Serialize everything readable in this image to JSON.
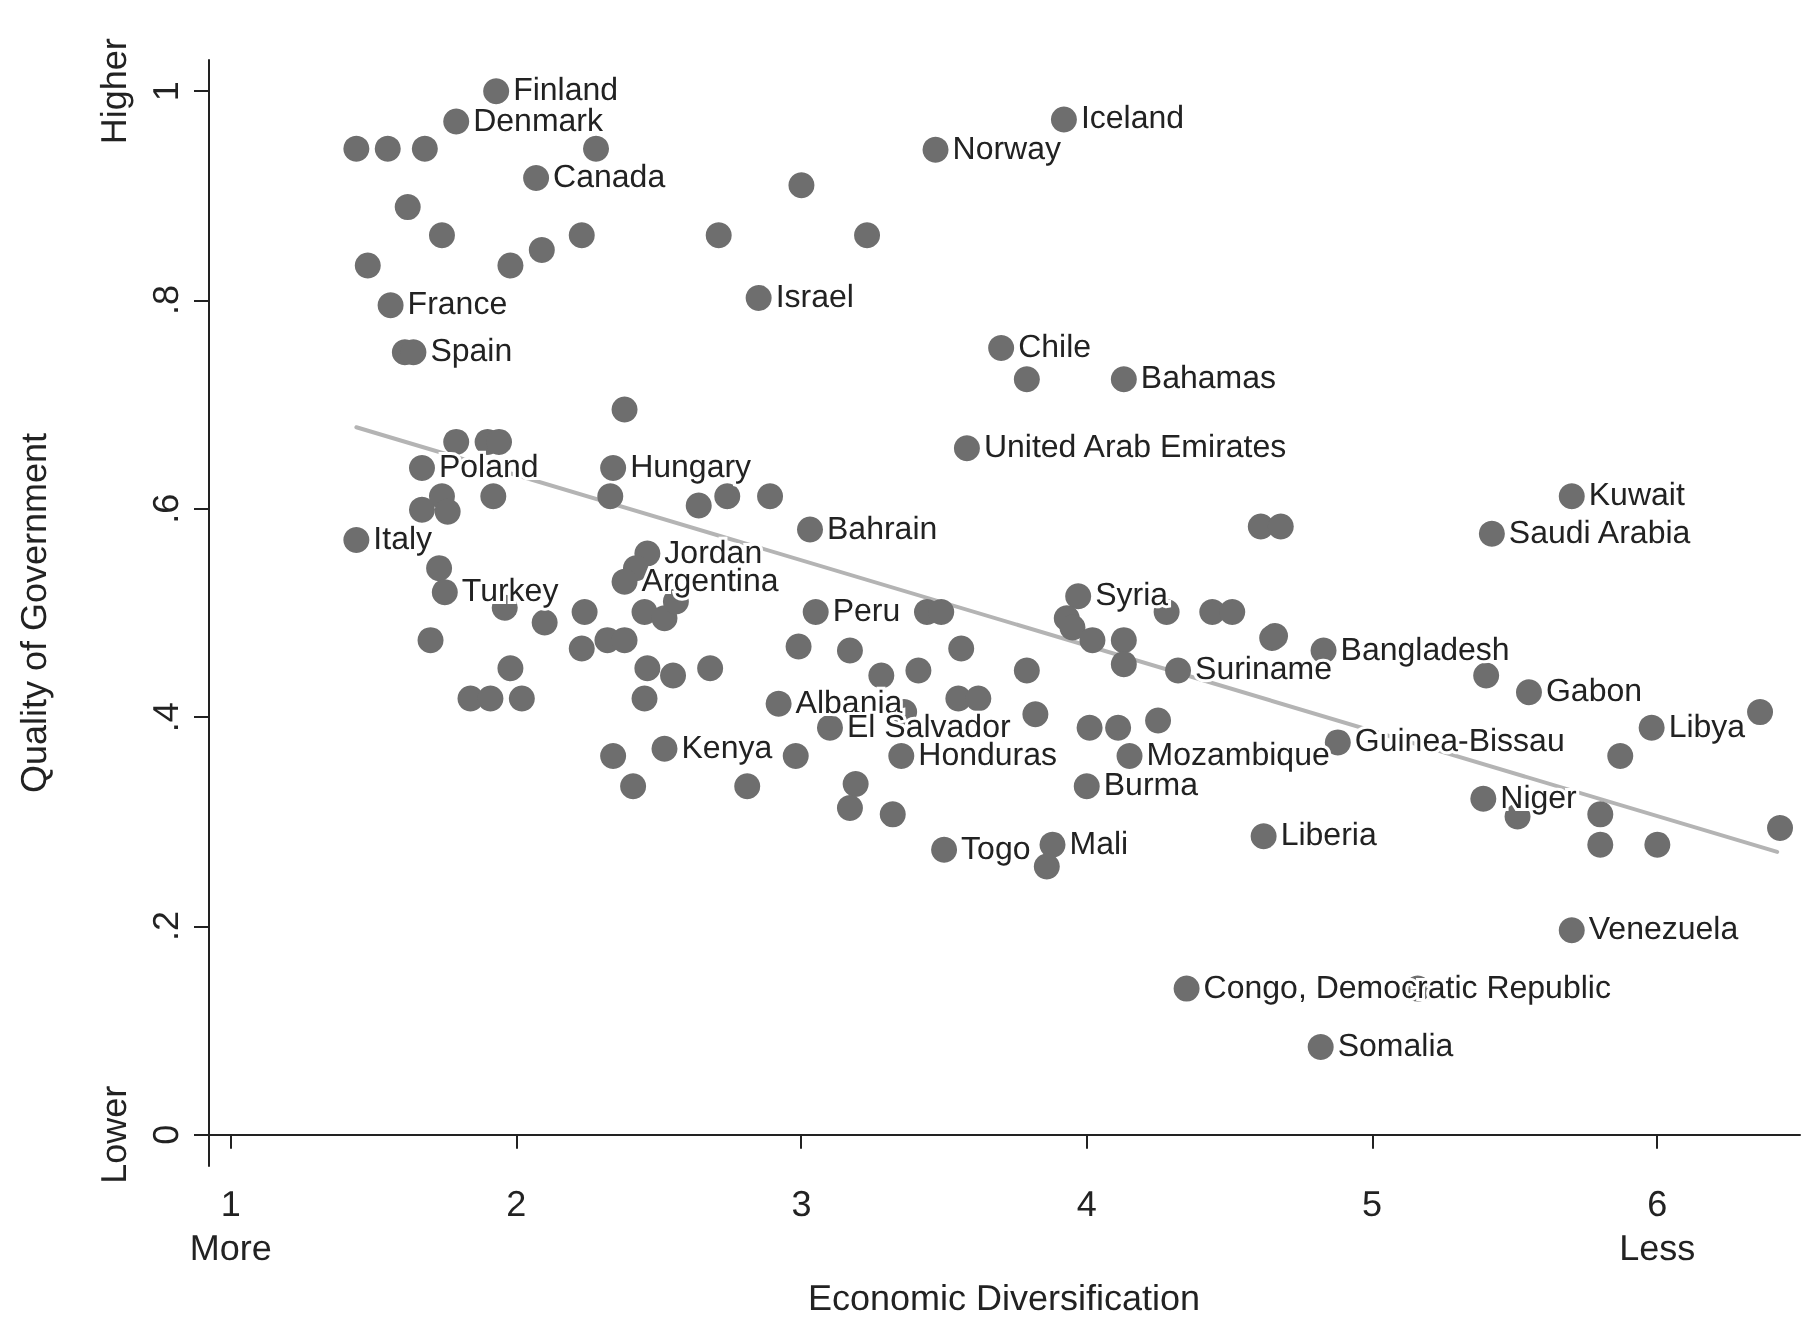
{
  "chart_data": {
    "type": "scatter",
    "xlabel": "Economic Diversification",
    "ylabel": "Quality of Government",
    "xlim": [
      0.92,
      6.5
    ],
    "ylim": [
      -0.03,
      1.03
    ],
    "xticks": [
      {
        "value": 1,
        "label": "1\nMore"
      },
      2,
      3,
      4,
      5,
      {
        "value": 6,
        "label": "6\nLess"
      }
    ],
    "yticks": [
      {
        "value": 0,
        "label": "Lower\n0"
      },
      {
        "value": 0.2,
        "label": ".2"
      },
      {
        "value": 0.4,
        "label": ".4"
      },
      {
        "value": 0.6,
        "label": ".6"
      },
      {
        "value": 0.8,
        "label": ".8"
      },
      {
        "value": 1,
        "label": "Higher\n1"
      }
    ],
    "grid": false,
    "marker": "circle",
    "series": [
      {
        "type": "scatter",
        "color": "#6e6e6e",
        "x": [
          1.93,
          1.79,
          1.44,
          1.55,
          1.68,
          2.28,
          2.07,
          1.62,
          1.74,
          2.23,
          1.48,
          1.98,
          2.09,
          2.71,
          2.85,
          1.56,
          1.61,
          1.64,
          2.38,
          2.34,
          1.79,
          1.9,
          1.94,
          1.67,
          1.74,
          1.67,
          1.76,
          1.92,
          2.33,
          1.44,
          1.73,
          1.75,
          1.96,
          2.1,
          2.24,
          1.7,
          2.23,
          2.32,
          2.38,
          1.98,
          1.84,
          1.91,
          2.02,
          2.46,
          2.55,
          2.68,
          2.45,
          2.52,
          2.34,
          2.41,
          2.46,
          2.42,
          2.38,
          2.45,
          2.52,
          2.56,
          3.92,
          3.47,
          3.0,
          3.23,
          3.7,
          3.79,
          4.13,
          3.58,
          2.64,
          2.74,
          2.89,
          3.03,
          4.61,
          4.68,
          5.7,
          5.42,
          3.05,
          3.44,
          3.49,
          3.97,
          3.93,
          3.95,
          4.28,
          4.44,
          4.51,
          4.65,
          4.66,
          2.99,
          3.17,
          3.56,
          4.02,
          4.13,
          4.13,
          3.28,
          3.41,
          3.79,
          4.32,
          2.92,
          3.55,
          3.62,
          3.36,
          3.82,
          3.1,
          4.01,
          4.11,
          4.25,
          2.98,
          3.35,
          4.15,
          2.81,
          3.19,
          3.17,
          3.32,
          4.0,
          3.5,
          3.88,
          3.86,
          4.62,
          4.35,
          4.83,
          5.4,
          5.55,
          5.98,
          6.36,
          4.88,
          5.87,
          5.39,
          5.51,
          5.8,
          5.8,
          6.0,
          6.43,
          5.7,
          5.16,
          4.82
        ],
        "values": [
          1.0,
          0.971,
          0.945,
          0.945,
          0.945,
          0.945,
          0.917,
          0.889,
          0.862,
          0.862,
          0.833,
          0.833,
          0.848,
          0.862,
          0.802,
          0.795,
          0.75,
          0.75,
          0.695,
          0.639,
          0.664,
          0.664,
          0.664,
          0.639,
          0.612,
          0.599,
          0.597,
          0.612,
          0.612,
          0.57,
          0.543,
          0.52,
          0.505,
          0.491,
          0.501,
          0.474,
          0.466,
          0.474,
          0.474,
          0.447,
          0.418,
          0.418,
          0.418,
          0.447,
          0.44,
          0.447,
          0.418,
          0.37,
          0.363,
          0.334,
          0.557,
          0.543,
          0.53,
          0.501,
          0.495,
          0.511,
          0.973,
          0.944,
          0.91,
          0.862,
          0.754,
          0.724,
          0.724,
          0.658,
          0.603,
          0.612,
          0.612,
          0.58,
          0.583,
          0.583,
          0.612,
          0.576,
          0.501,
          0.501,
          0.501,
          0.516,
          0.495,
          0.486,
          0.501,
          0.501,
          0.501,
          0.476,
          0.478,
          0.468,
          0.464,
          0.466,
          0.474,
          0.474,
          0.451,
          0.44,
          0.445,
          0.445,
          0.445,
          0.413,
          0.418,
          0.418,
          0.405,
          0.403,
          0.39,
          0.39,
          0.39,
          0.397,
          0.363,
          0.363,
          0.363,
          0.334,
          0.336,
          0.313,
          0.307,
          0.334,
          0.273,
          0.278,
          0.257,
          0.286,
          0.14,
          0.464,
          0.44,
          0.424,
          0.39,
          0.405,
          0.376,
          0.363,
          0.322,
          0.305,
          0.307,
          0.278,
          0.278,
          0.294,
          0.196,
          0.14,
          0.084
        ],
        "value_labels": [
          "Finland",
          "Denmark",
          null,
          null,
          null,
          null,
          "Canada",
          null,
          null,
          null,
          null,
          null,
          null,
          null,
          "Israel",
          "France",
          null,
          "Spain",
          null,
          "Hungary",
          null,
          null,
          null,
          "Poland",
          null,
          null,
          null,
          null,
          null,
          "Italy",
          null,
          "Turkey",
          null,
          null,
          null,
          null,
          null,
          null,
          null,
          null,
          null,
          null,
          null,
          null,
          null,
          null,
          null,
          "Kenya",
          null,
          null,
          "Jordan",
          null,
          "Argentina",
          null,
          null,
          null,
          "Iceland",
          "Norway",
          null,
          null,
          "Chile",
          null,
          "Bahamas",
          "United Arab Emirates",
          null,
          null,
          null,
          "Bahrain",
          null,
          null,
          "Kuwait",
          "Saudi Arabia",
          "Peru",
          null,
          null,
          "Syria",
          null,
          null,
          null,
          null,
          null,
          null,
          null,
          null,
          null,
          null,
          null,
          null,
          null,
          null,
          null,
          null,
          "Suriname",
          "Albania",
          null,
          null,
          null,
          null,
          "El Salvador",
          null,
          null,
          null,
          null,
          "Honduras",
          "Mozambique",
          null,
          null,
          null,
          null,
          "Burma",
          "Togo",
          "Mali",
          null,
          "Liberia",
          "Congo, Democratic Republic",
          "Bangladesh",
          null,
          "Gabon",
          "Libya",
          null,
          "Guinea-Bissau",
          null,
          "Niger",
          null,
          null,
          null,
          null,
          null,
          "Venezuela",
          null,
          "Somalia"
        ]
      },
      {
        "type": "line",
        "color": "#b4b4b4",
        "marker": "none",
        "x": [
          1.44,
          6.42
        ],
        "values": [
          0.678,
          0.271
        ]
      }
    ]
  }
}
